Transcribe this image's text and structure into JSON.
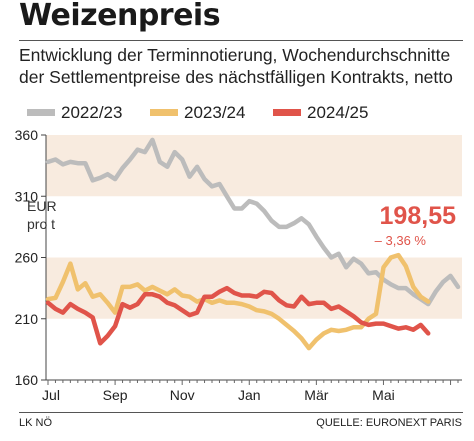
{
  "header": {
    "title": "Weizenpreis",
    "subtitle": "Entwicklung der Terminnotierung, Wochendurchschnitte der Settlementpreise des nächstfälligen Kontrakts, netto"
  },
  "footer": {
    "left": "LK NÖ",
    "right": "QUELLE: EURONEXT PARIS"
  },
  "annotation": {
    "value": "198,55",
    "change": "– 3,36 %",
    "color": "#e0544a"
  },
  "colors": {
    "band": "#f8ebdf",
    "s2223": "#bcbcbc",
    "s2324": "#f0c16d",
    "s2425": "#e0544a"
  },
  "chart_data": {
    "type": "line",
    "unit_label": [
      "EUR",
      "pro t"
    ],
    "ylim": [
      160,
      360
    ],
    "yticks": [
      160,
      210,
      260,
      310,
      360
    ],
    "shaded_bands": [
      [
        210,
        260
      ],
      [
        310,
        360
      ]
    ],
    "x_tick_labels": [
      "Jul",
      "Sep",
      "Nov",
      "Jan",
      "Mär",
      "Mai"
    ],
    "x_tick_weeks": [
      0,
      9,
      18,
      27,
      36,
      45
    ],
    "series": [
      {
        "name": "2022/23",
        "color": "#bcbcbc",
        "values": [
          338,
          340,
          336,
          338,
          337,
          337,
          323,
          325,
          328,
          324,
          333,
          340,
          348,
          346,
          356,
          338,
          334,
          346,
          340,
          326,
          334,
          324,
          318,
          320,
          310,
          300,
          300,
          306,
          304,
          298,
          290,
          285,
          285,
          288,
          292,
          287,
          277,
          268,
          260,
          263,
          252,
          259,
          255,
          247,
          248,
          242,
          238,
          235,
          235,
          230,
          226,
          222,
          232,
          240,
          245,
          236
        ]
      },
      {
        "name": "2023/24",
        "color": "#f0c16d",
        "values": [
          226,
          227,
          240,
          255,
          234,
          239,
          228,
          230,
          223,
          215,
          236,
          236,
          238,
          233,
          236,
          233,
          230,
          234,
          229,
          228,
          224,
          226,
          223,
          225,
          223,
          223,
          222,
          220,
          217,
          216,
          214,
          210,
          205,
          200,
          194,
          186,
          193,
          198,
          201,
          200,
          201,
          203,
          203,
          210,
          214,
          252,
          260,
          262,
          253,
          236,
          228,
          224
        ]
      },
      {
        "name": "2024/25",
        "color": "#e0544a",
        "values": [
          223,
          218,
          215,
          222,
          218,
          215,
          211,
          190,
          196,
          204,
          222,
          219,
          222,
          230,
          230,
          228,
          223,
          221,
          217,
          213,
          215,
          228,
          228,
          232,
          235,
          231,
          229,
          229,
          228,
          232,
          231,
          225,
          221,
          220,
          228,
          222,
          223,
          223,
          218,
          220,
          216,
          212,
          207,
          205,
          206,
          206,
          204,
          202,
          203,
          201,
          205,
          198
        ]
      }
    ]
  }
}
